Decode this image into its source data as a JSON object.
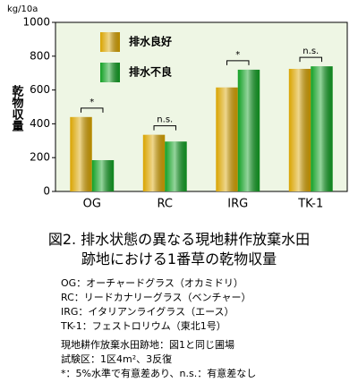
{
  "chart_data": {
    "type": "bar",
    "y_unit": "kg/10a",
    "y_label": "乾物収量",
    "categories": [
      "OG",
      "RC",
      "IRG",
      "TK-1"
    ],
    "series": [
      {
        "name": "排水良好",
        "color": "#d9a400",
        "values": [
          440,
          335,
          615,
          725
        ]
      },
      {
        "name": "排水不良",
        "color": "#12a024",
        "values": [
          185,
          295,
          720,
          740
        ]
      }
    ],
    "significance": [
      "*",
      "n.s.",
      "*",
      "n.s."
    ],
    "ylim": [
      0,
      1000
    ],
    "yticks": [
      0,
      200,
      400,
      600,
      800,
      1000
    ],
    "legend": "upper-left",
    "plot_background": "#eef6e4"
  },
  "caption": {
    "line1": "図2. 排水状態の異なる現地耕作放棄水田",
    "line2": "跡地における1番草の乾物収量"
  },
  "notes": [
    "OG：オーチャードグラス（オカミドリ）",
    "RC：リードカナリーグラス（ベンチャー）",
    "IRG：イタリアンライグラス（エース）",
    "TK-1：フェストロリウム（東北1号）"
  ],
  "footnotes": [
    "現地耕作放棄水田跡地：図1と同じ圃場",
    "試験区：1区4m²、3反復",
    "*：5%水準で有意差あり、n.s.：有意差なし"
  ]
}
